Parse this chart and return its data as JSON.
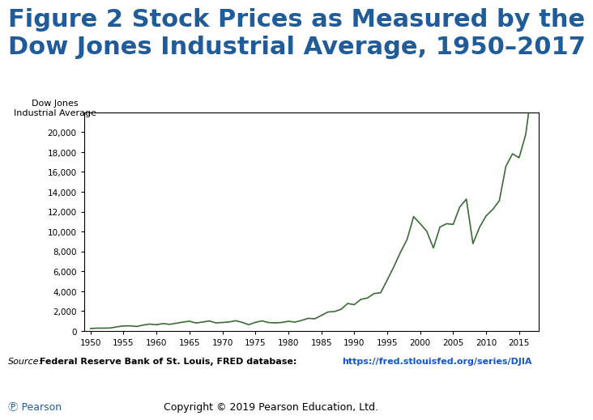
{
  "title_line1": "Figure 2 Stock Prices as Measured by the",
  "title_line2": "Dow Jones Industrial Average, 1950–2017",
  "title_color": "#1F5C99",
  "title_fontsize": 22,
  "ylabel": "Dow Jones\nIndustrial Average",
  "ylabel_fontsize": 8,
  "line_color": "#3A6B35",
  "line_width": 1.2,
  "bg_color": "#FFFFFF",
  "source_italic": "Source:",
  "source_bold": " Federal Reserve Bank of St. Louis, FRED database: ",
  "source_url": "https://fred.stlouisfed.org/series/DJIA",
  "copyright_text": "Copyright © 2019 Pearson Education, Ltd.",
  "pearson_text": "Ⓟ Pearson",
  "yticks": [
    0,
    2000,
    4000,
    6000,
    8000,
    10000,
    12000,
    14000,
    16000,
    18000,
    20000
  ],
  "xticks": [
    1950,
    1955,
    1960,
    1965,
    1970,
    1975,
    1980,
    1985,
    1990,
    1995,
    2000,
    2005,
    2010,
    2015
  ],
  "years": [
    1950,
    1951,
    1952,
    1953,
    1954,
    1955,
    1956,
    1957,
    1958,
    1959,
    1960,
    1961,
    1962,
    1963,
    1964,
    1965,
    1966,
    1967,
    1968,
    1969,
    1970,
    1971,
    1972,
    1973,
    1974,
    1975,
    1976,
    1977,
    1978,
    1979,
    1980,
    1981,
    1982,
    1983,
    1984,
    1985,
    1986,
    1987,
    1988,
    1989,
    1990,
    1991,
    1992,
    1993,
    1994,
    1995,
    1996,
    1997,
    1998,
    1999,
    2000,
    2001,
    2002,
    2003,
    2004,
    2005,
    2006,
    2007,
    2008,
    2009,
    2010,
    2011,
    2012,
    2013,
    2014,
    2015,
    2016,
    2017
  ],
  "djia": [
    235,
    269,
    270,
    281,
    404,
    488,
    499,
    436,
    584,
    679,
    616,
    731,
    652,
    762,
    874,
    969,
    786,
    879,
    994,
    800,
    838,
    890,
    1020,
    851,
    616,
    852,
    1005,
    831,
    805,
    838,
    963,
    875,
    1046,
    1259,
    1212,
    1547,
    1896,
    1939,
    2169,
    2753,
    2634,
    3169,
    3301,
    3754,
    3834,
    5117,
    6448,
    7908,
    9181,
    11497,
    10787,
    10022,
    8342,
    10454,
    10783,
    10718,
    12463,
    13265,
    8776,
    10428,
    11578,
    12217,
    13104,
    16577,
    17823,
    17425,
    19763,
    24719
  ]
}
